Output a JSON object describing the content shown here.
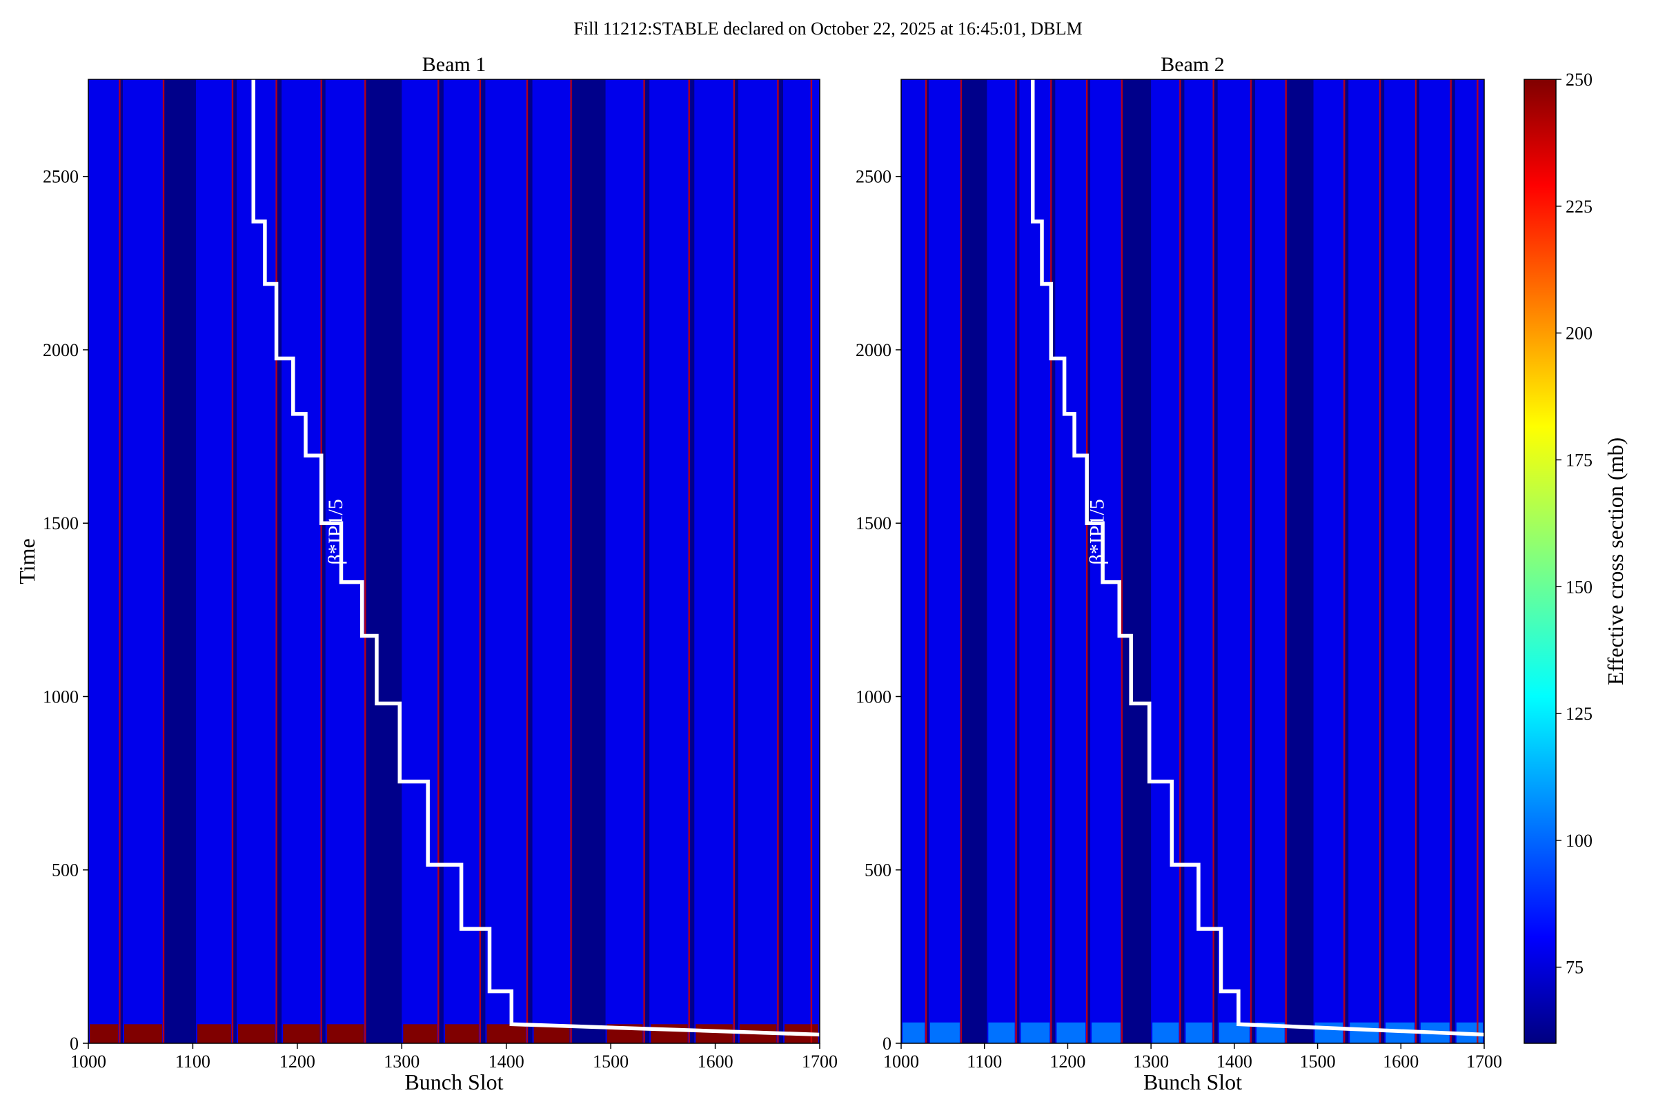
{
  "figure": {
    "title": "Fill 11212:STABLE declared on October 22, 2025 at 16:45:01, DBLM"
  },
  "chart_data": [
    {
      "type": "heatmap",
      "title": "Beam 1",
      "xlabel": "Bunch Slot",
      "ylabel": "Time",
      "xlim": [
        1000,
        1700
      ],
      "ylim": [
        0,
        2780
      ],
      "xticks": [
        1000,
        1100,
        1200,
        1300,
        1400,
        1500,
        1600,
        1700
      ],
      "yticks": [
        0,
        500,
        1000,
        1500,
        2000,
        2500
      ],
      "annotation": "β*IP1/5",
      "trains": [
        [
          1000,
          1030
        ],
        [
          1033,
          1072
        ],
        [
          1103,
          1138
        ],
        [
          1142,
          1180
        ],
        [
          1185,
          1223
        ],
        [
          1227,
          1265
        ],
        [
          1300,
          1335
        ],
        [
          1340,
          1375
        ],
        [
          1380,
          1420
        ],
        [
          1425,
          1462
        ],
        [
          1495,
          1532
        ],
        [
          1537,
          1575
        ],
        [
          1580,
          1618
        ],
        [
          1622,
          1660
        ],
        [
          1665,
          1700
        ]
      ],
      "bright_columns": [
        1030,
        1072,
        1138,
        1180,
        1223,
        1265,
        1335,
        1375,
        1420,
        1462,
        1532,
        1575,
        1618,
        1660,
        1692
      ],
      "injection_band": {
        "time_range": [
          0,
          55
        ],
        "value": 250
      },
      "background_value": 80,
      "gap_value": 62,
      "beta_star_steps": [
        [
          1158,
          2780
        ],
        [
          1158,
          2370
        ],
        [
          1169,
          2370
        ],
        [
          1169,
          2190
        ],
        [
          1180,
          2190
        ],
        [
          1180,
          1975
        ],
        [
          1196,
          1975
        ],
        [
          1196,
          1815
        ],
        [
          1208,
          1815
        ],
        [
          1208,
          1695
        ],
        [
          1223,
          1695
        ],
        [
          1223,
          1500
        ],
        [
          1242,
          1500
        ],
        [
          1242,
          1330
        ],
        [
          1262,
          1330
        ],
        [
          1262,
          1175
        ],
        [
          1276,
          1175
        ],
        [
          1276,
          980
        ],
        [
          1298,
          980
        ],
        [
          1298,
          755
        ],
        [
          1325,
          755
        ],
        [
          1325,
          515
        ],
        [
          1357,
          515
        ],
        [
          1357,
          330
        ],
        [
          1384,
          330
        ],
        [
          1384,
          150
        ],
        [
          1405,
          150
        ],
        [
          1405,
          55
        ],
        [
          1700,
          25
        ]
      ]
    },
    {
      "type": "heatmap",
      "title": "Beam 2",
      "xlabel": "Bunch Slot",
      "ylabel": "",
      "xlim": [
        1000,
        1700
      ],
      "ylim": [
        0,
        2780
      ],
      "xticks": [
        1000,
        1100,
        1200,
        1300,
        1400,
        1500,
        1600,
        1700
      ],
      "yticks": [
        0,
        500,
        1000,
        1500,
        2000,
        2500
      ],
      "annotation": "β*IP1/5",
      "trains": [
        [
          1000,
          1030
        ],
        [
          1033,
          1072
        ],
        [
          1103,
          1138
        ],
        [
          1142,
          1180
        ],
        [
          1185,
          1223
        ],
        [
          1227,
          1265
        ],
        [
          1300,
          1335
        ],
        [
          1340,
          1375
        ],
        [
          1380,
          1420
        ],
        [
          1425,
          1462
        ],
        [
          1495,
          1532
        ],
        [
          1537,
          1575
        ],
        [
          1580,
          1618
        ],
        [
          1622,
          1660
        ],
        [
          1665,
          1700
        ]
      ],
      "bright_columns": [
        1030,
        1072,
        1138,
        1180,
        1223,
        1265,
        1335,
        1375,
        1420,
        1462,
        1532,
        1575,
        1618,
        1660,
        1692
      ],
      "injection_band": {
        "time_range": [
          0,
          60
        ],
        "value": 105
      },
      "background_value": 80,
      "gap_value": 62,
      "beta_star_steps": [
        [
          1158,
          2780
        ],
        [
          1158,
          2370
        ],
        [
          1169,
          2370
        ],
        [
          1169,
          2190
        ],
        [
          1180,
          2190
        ],
        [
          1180,
          1975
        ],
        [
          1196,
          1975
        ],
        [
          1196,
          1815
        ],
        [
          1208,
          1815
        ],
        [
          1208,
          1695
        ],
        [
          1223,
          1695
        ],
        [
          1223,
          1500
        ],
        [
          1242,
          1500
        ],
        [
          1242,
          1330
        ],
        [
          1262,
          1330
        ],
        [
          1262,
          1175
        ],
        [
          1276,
          1175
        ],
        [
          1276,
          980
        ],
        [
          1298,
          980
        ],
        [
          1298,
          755
        ],
        [
          1325,
          755
        ],
        [
          1325,
          515
        ],
        [
          1357,
          515
        ],
        [
          1357,
          330
        ],
        [
          1384,
          330
        ],
        [
          1384,
          150
        ],
        [
          1405,
          150
        ],
        [
          1405,
          55
        ],
        [
          1700,
          25
        ]
      ]
    }
  ],
  "colorbar": {
    "label": "Effective cross section (mb)",
    "range": [
      60,
      250
    ],
    "ticks": [
      75,
      100,
      125,
      150,
      175,
      200,
      225,
      250
    ],
    "colormap": "jet"
  }
}
